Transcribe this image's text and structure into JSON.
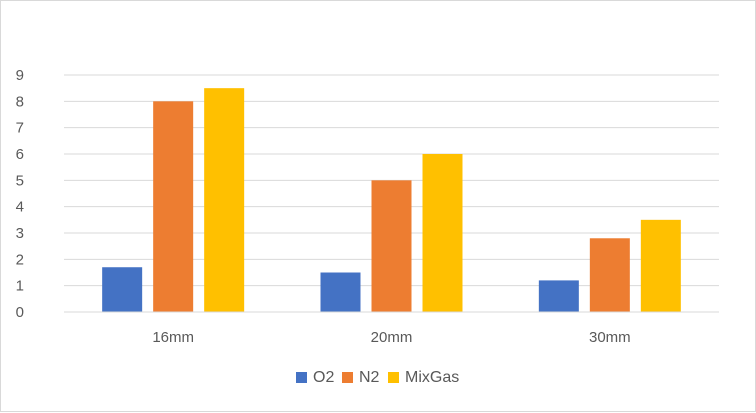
{
  "chart_data": {
    "type": "bar",
    "title": "",
    "xlabel": "",
    "ylabel": "",
    "categories": [
      "16mm",
      "20mm",
      "30mm"
    ],
    "series": [
      {
        "name": "O2",
        "values": [
          1.7,
          1.5,
          1.2
        ],
        "color": "#4472C4"
      },
      {
        "name": "N2",
        "values": [
          8.0,
          5.0,
          2.8
        ],
        "color": "#ED7D31"
      },
      {
        "name": "MixGas",
        "values": [
          8.5,
          6.0,
          3.5
        ],
        "color": "#FFC000"
      }
    ],
    "ylim": [
      0,
      9
    ],
    "yticks": [
      "0",
      "1",
      "2",
      "3",
      "4",
      "5",
      "6",
      "7",
      "8",
      "9"
    ],
    "grid": true,
    "gridColor": "#d9d9d9",
    "legend": "bottom-center"
  }
}
